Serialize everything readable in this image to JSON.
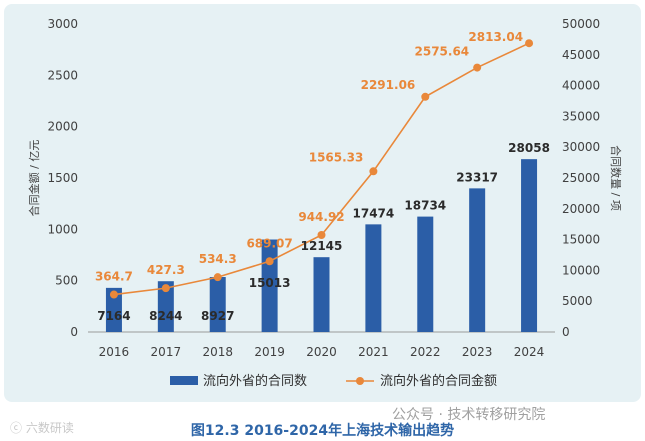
{
  "chart_data": {
    "type": "bar+line",
    "categories": [
      "2016",
      "2017",
      "2018",
      "2019",
      "2020",
      "2021",
      "2022",
      "2023",
      "2024"
    ],
    "series": [
      {
        "name": "流向外省的合同数",
        "type": "bar",
        "axis": "right",
        "values": [
          7164,
          8244,
          8927,
          15013,
          12145,
          17474,
          18734,
          23317,
          28058
        ],
        "labels": [
          "7164",
          "8244",
          "8927",
          "15013",
          "12145",
          "17474",
          "18734",
          "23317",
          "28058"
        ],
        "color": "#2b5ea7"
      },
      {
        "name": "流向外省的合同金额",
        "type": "line",
        "axis": "left",
        "values": [
          364.7,
          427.3,
          534.3,
          689.07,
          944.92,
          1565.33,
          2291.06,
          2575.64,
          2813.04
        ],
        "labels": [
          "364.7",
          "427.3",
          "534.3",
          "689.07",
          "944.92",
          "1565.33",
          "2291.06",
          "2575.64",
          "2813.04"
        ],
        "color": "#e9883a"
      }
    ],
    "y_left": {
      "label": "合同金额 / 亿元",
      "ylim": [
        0,
        3000
      ],
      "ticks": [
        "0",
        "500",
        "1000",
        "1500",
        "2000",
        "2500",
        "3000"
      ]
    },
    "y_right": {
      "label": "合同数量 / 项",
      "ylim": [
        0,
        50000
      ],
      "ticks": [
        "0",
        "5000",
        "10000",
        "15000",
        "20000",
        "25000",
        "30000",
        "35000",
        "40000",
        "45000",
        "50000"
      ]
    },
    "grid": false,
    "legend": "bottom"
  },
  "caption": "图12.3    2016-2024年上海技术输出趋势",
  "watermark": "ⓒ 六数研读",
  "source": "公众号 · 技术转移研究院",
  "colors": {
    "background": "#e6f1f4",
    "bar": "#2b5ea7",
    "line": "#e9883a",
    "caption": "#2f66a8"
  }
}
